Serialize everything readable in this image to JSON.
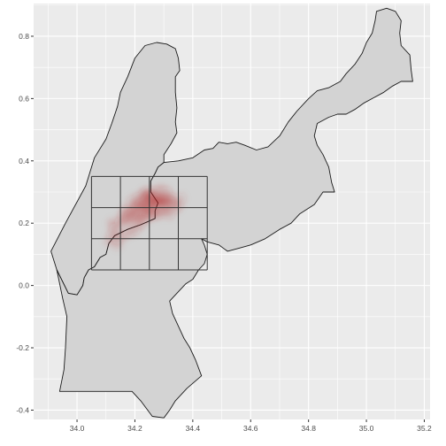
{
  "chart_data": {
    "type": "map",
    "title": "",
    "xlabel": "",
    "ylabel": "",
    "xlim": [
      33.85,
      35.22
    ],
    "ylim": [
      -0.43,
      0.905
    ],
    "grid": true,
    "x_ticks": [
      34.0,
      34.2,
      34.4,
      34.6,
      34.8,
      35.0,
      35.2
    ],
    "x_tick_labels": [
      "34.0",
      "34.2",
      "34.4",
      "34.6",
      "34.8",
      "35.0",
      "35.2"
    ],
    "y_ticks": [
      -0.4,
      -0.2,
      0.0,
      0.2,
      0.4,
      0.6,
      0.8
    ],
    "y_tick_labels": [
      "-0.4",
      "-0.2",
      "0.0",
      "0.2",
      "0.4",
      "0.6",
      "0.8"
    ],
    "region_fill": "#d3d3d3",
    "region_stroke": "#1a1a1a",
    "panel_background": "#ebebeb",
    "grid_color": "#ffffff",
    "regions": [
      {
        "part": "west",
        "coords": [
          [
            34.3,
            0.395
          ],
          [
            34.28,
            0.38
          ],
          [
            34.27,
            0.36
          ],
          [
            34.255,
            0.335
          ],
          [
            34.255,
            0.3
          ],
          [
            34.28,
            0.265
          ],
          [
            34.27,
            0.24
          ],
          [
            34.27,
            0.215
          ],
          [
            34.22,
            0.195
          ],
          [
            34.175,
            0.18
          ],
          [
            34.13,
            0.16
          ],
          [
            34.11,
            0.135
          ],
          [
            34.1,
            0.1
          ],
          [
            34.08,
            0.09
          ],
          [
            34.06,
            0.06
          ],
          [
            34.04,
            0.05
          ],
          [
            34.025,
            0.025
          ],
          [
            34.02,
            0.0
          ],
          [
            34.0,
            -0.03
          ],
          [
            33.97,
            -0.025
          ],
          [
            33.93,
            0.05
          ],
          [
            33.91,
            0.11
          ],
          [
            33.96,
            0.2
          ],
          [
            34.03,
            0.32
          ],
          [
            34.06,
            0.41
          ],
          [
            34.1,
            0.47
          ],
          [
            34.12,
            0.52
          ],
          [
            34.14,
            0.575
          ],
          [
            34.15,
            0.62
          ],
          [
            34.175,
            0.67
          ],
          [
            34.2,
            0.73
          ],
          [
            34.235,
            0.77
          ],
          [
            34.275,
            0.78
          ],
          [
            34.31,
            0.775
          ],
          [
            34.33,
            0.765
          ],
          [
            34.34,
            0.76
          ],
          [
            34.35,
            0.73
          ],
          [
            34.355,
            0.69
          ],
          [
            34.34,
            0.67
          ],
          [
            34.34,
            0.62
          ],
          [
            34.345,
            0.57
          ],
          [
            34.34,
            0.525
          ],
          [
            34.345,
            0.49
          ],
          [
            34.325,
            0.455
          ],
          [
            34.3,
            0.42
          ]
        ]
      },
      {
        "part": "east",
        "coords": [
          [
            34.3,
            0.395
          ],
          [
            34.35,
            0.4
          ],
          [
            34.4,
            0.41
          ],
          [
            34.44,
            0.435
          ],
          [
            34.47,
            0.44
          ],
          [
            34.49,
            0.46
          ],
          [
            34.52,
            0.455
          ],
          [
            34.55,
            0.46
          ],
          [
            34.58,
            0.45
          ],
          [
            34.62,
            0.435
          ],
          [
            34.66,
            0.445
          ],
          [
            34.7,
            0.48
          ],
          [
            34.73,
            0.525
          ],
          [
            34.76,
            0.56
          ],
          [
            34.8,
            0.6
          ],
          [
            34.83,
            0.625
          ],
          [
            34.87,
            0.635
          ],
          [
            34.91,
            0.655
          ],
          [
            34.93,
            0.68
          ],
          [
            34.96,
            0.71
          ],
          [
            34.985,
            0.745
          ],
          [
            35.0,
            0.78
          ],
          [
            35.02,
            0.81
          ],
          [
            35.03,
            0.85
          ],
          [
            35.035,
            0.88
          ],
          [
            35.07,
            0.89
          ],
          [
            35.1,
            0.88
          ],
          [
            35.12,
            0.85
          ],
          [
            35.115,
            0.81
          ],
          [
            35.12,
            0.77
          ],
          [
            35.15,
            0.74
          ],
          [
            35.155,
            0.69
          ],
          [
            35.16,
            0.655
          ],
          [
            35.12,
            0.655
          ],
          [
            35.09,
            0.64
          ],
          [
            35.06,
            0.62
          ],
          [
            35.02,
            0.6
          ],
          [
            34.99,
            0.585
          ],
          [
            34.96,
            0.565
          ],
          [
            34.93,
            0.55
          ],
          [
            34.9,
            0.55
          ],
          [
            34.87,
            0.54
          ],
          [
            34.83,
            0.52
          ],
          [
            34.82,
            0.48
          ],
          [
            34.83,
            0.45
          ],
          [
            34.85,
            0.42
          ],
          [
            34.87,
            0.38
          ],
          [
            34.88,
            0.33
          ],
          [
            34.89,
            0.3
          ],
          [
            34.85,
            0.3
          ],
          [
            34.82,
            0.26
          ],
          [
            34.77,
            0.23
          ],
          [
            34.74,
            0.2
          ],
          [
            34.7,
            0.18
          ],
          [
            34.65,
            0.15
          ],
          [
            34.6,
            0.13
          ],
          [
            34.56,
            0.12
          ],
          [
            34.52,
            0.11
          ],
          [
            34.49,
            0.13
          ],
          [
            34.45,
            0.14
          ],
          [
            34.43,
            0.15
          ],
          [
            34.44,
            0.13
          ],
          [
            34.45,
            0.1
          ],
          [
            34.44,
            0.07
          ],
          [
            34.42,
            0.05
          ],
          [
            34.4,
            0.02
          ],
          [
            34.375,
            0.005
          ],
          [
            34.35,
            -0.02
          ],
          [
            34.32,
            -0.05
          ],
          [
            34.33,
            -0.09
          ],
          [
            34.35,
            -0.13
          ],
          [
            34.37,
            -0.17
          ],
          [
            34.39,
            -0.2
          ],
          [
            34.41,
            -0.24
          ],
          [
            34.43,
            -0.29
          ],
          [
            34.38,
            -0.33
          ],
          [
            34.34,
            -0.37
          ],
          [
            34.32,
            -0.4
          ],
          [
            34.3,
            -0.425
          ],
          [
            34.26,
            -0.42
          ],
          [
            34.22,
            -0.37
          ],
          [
            34.19,
            -0.34
          ],
          [
            34.05,
            -0.34
          ],
          [
            33.94,
            -0.34
          ],
          [
            33.955,
            -0.27
          ],
          [
            33.96,
            -0.2
          ],
          [
            33.965,
            -0.1
          ],
          [
            33.95,
            -0.04
          ],
          [
            33.93,
            0.05
          ],
          [
            33.97,
            -0.025
          ],
          [
            34.0,
            -0.03
          ],
          [
            34.02,
            0.0
          ],
          [
            34.025,
            0.025
          ],
          [
            34.04,
            0.05
          ],
          [
            34.06,
            0.06
          ],
          [
            34.08,
            0.09
          ],
          [
            34.1,
            0.1
          ],
          [
            34.11,
            0.135
          ],
          [
            34.13,
            0.16
          ],
          [
            34.175,
            0.18
          ],
          [
            34.22,
            0.195
          ],
          [
            34.27,
            0.215
          ],
          [
            34.27,
            0.24
          ],
          [
            34.28,
            0.265
          ],
          [
            34.255,
            0.3
          ],
          [
            34.255,
            0.335
          ],
          [
            34.27,
            0.36
          ],
          [
            34.28,
            0.38
          ]
        ]
      }
    ],
    "grid_cells": {
      "x_breaks": [
        34.05,
        34.15,
        34.25,
        34.35,
        34.45
      ],
      "y_breaks": [
        0.05,
        0.15,
        0.25,
        0.35
      ],
      "stroke": "#333333"
    },
    "density_layer": {
      "color": "#b22222",
      "points": [
        [
          34.11,
          0.14,
          0.18
        ],
        [
          34.12,
          0.16,
          0.25
        ],
        [
          34.13,
          0.18,
          0.3
        ],
        [
          34.12,
          0.2,
          0.22
        ],
        [
          34.14,
          0.15,
          0.28
        ],
        [
          34.15,
          0.2,
          0.35
        ],
        [
          34.16,
          0.22,
          0.42
        ],
        [
          34.17,
          0.24,
          0.4
        ],
        [
          34.18,
          0.21,
          0.45
        ],
        [
          34.19,
          0.23,
          0.5
        ],
        [
          34.2,
          0.25,
          0.55
        ],
        [
          34.21,
          0.22,
          0.5
        ],
        [
          34.22,
          0.26,
          0.6
        ],
        [
          34.23,
          0.24,
          0.55
        ],
        [
          34.24,
          0.27,
          0.62
        ],
        [
          34.25,
          0.25,
          0.6
        ],
        [
          34.26,
          0.28,
          0.65
        ],
        [
          34.27,
          0.26,
          0.58
        ],
        [
          34.28,
          0.27,
          0.6
        ],
        [
          34.29,
          0.28,
          0.55
        ],
        [
          34.3,
          0.27,
          0.5
        ],
        [
          34.31,
          0.26,
          0.45
        ],
        [
          34.32,
          0.28,
          0.42
        ],
        [
          34.33,
          0.27,
          0.38
        ],
        [
          34.34,
          0.25,
          0.3
        ],
        [
          34.35,
          0.26,
          0.25
        ],
        [
          34.36,
          0.28,
          0.2
        ],
        [
          34.22,
          0.2,
          0.4
        ],
        [
          34.24,
          0.22,
          0.45
        ],
        [
          34.26,
          0.23,
          0.48
        ],
        [
          34.2,
          0.18,
          0.3
        ],
        [
          34.18,
          0.17,
          0.28
        ],
        [
          34.16,
          0.16,
          0.22
        ],
        [
          34.14,
          0.13,
          0.18
        ],
        [
          34.28,
          0.23,
          0.4
        ],
        [
          34.3,
          0.24,
          0.38
        ],
        [
          34.32,
          0.23,
          0.3
        ],
        [
          34.27,
          0.3,
          0.35
        ],
        [
          34.24,
          0.3,
          0.3
        ],
        [
          34.21,
          0.28,
          0.3
        ],
        [
          34.19,
          0.27,
          0.25
        ],
        [
          34.31,
          0.3,
          0.28
        ],
        [
          34.29,
          0.31,
          0.22
        ],
        [
          34.23,
          0.29,
          0.4
        ],
        [
          34.25,
          0.29,
          0.45
        ]
      ]
    }
  }
}
